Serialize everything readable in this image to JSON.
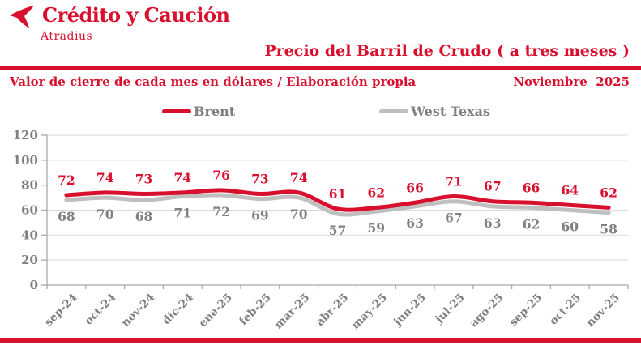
{
  "colors": {
    "brand_red": "#D8102E",
    "line_gray": "#BFBFBF",
    "text_gray": "#7F7F7F",
    "axis_gray": "#A8A8A8",
    "grid_gray": "#DBDBDB",
    "xlabel_gray": "#808080"
  },
  "brand": {
    "name": "Crédito y Caución",
    "subname": "Atradius"
  },
  "header": {
    "title": "Precio del Barril de Crudo ( a tres meses )",
    "subtitle": "Valor de cierre de cada mes en dólares / Elaboración propia",
    "date": "Noviembre  2025"
  },
  "legend": [
    {
      "label": "Brent",
      "color": "#D8102E"
    },
    {
      "label": "West Texas",
      "color": "#BFBFBF"
    }
  ],
  "chart_data": {
    "type": "line",
    "title": "Precio del Barril de Crudo ( a tres meses )",
    "subtitle": "Valor de cierre de cada mes en dólares / Elaboración propia",
    "categories": [
      "sep-24",
      "oct-24",
      "nov-24",
      "dic-24",
      "ene-25",
      "feb-25",
      "mar-25",
      "abr-25",
      "may-25",
      "jun-25",
      "jul-25",
      "ago-25",
      "sep-25",
      "oct-25",
      "nov-25"
    ],
    "series": [
      {
        "name": "West Texas",
        "color": "#BFBFBF",
        "label_color": "#808080",
        "label_position": "below",
        "values": [
          68,
          70,
          68,
          71,
          72,
          69,
          70,
          57,
          59,
          63,
          67,
          63,
          62,
          60,
          58
        ]
      },
      {
        "name": "Brent",
        "color": "#D8102E",
        "label_color": "#D8102E",
        "label_position": "above",
        "values": [
          72,
          74,
          73,
          74,
          76,
          73,
          74,
          61,
          62,
          66,
          71,
          67,
          66,
          64,
          62
        ]
      }
    ],
    "ylim": [
      0,
      120
    ],
    "yticks": [
      0,
      20,
      40,
      60,
      80,
      100,
      120
    ],
    "grid": true,
    "smooth": true,
    "legend_position": "top",
    "data_labels": true
  }
}
